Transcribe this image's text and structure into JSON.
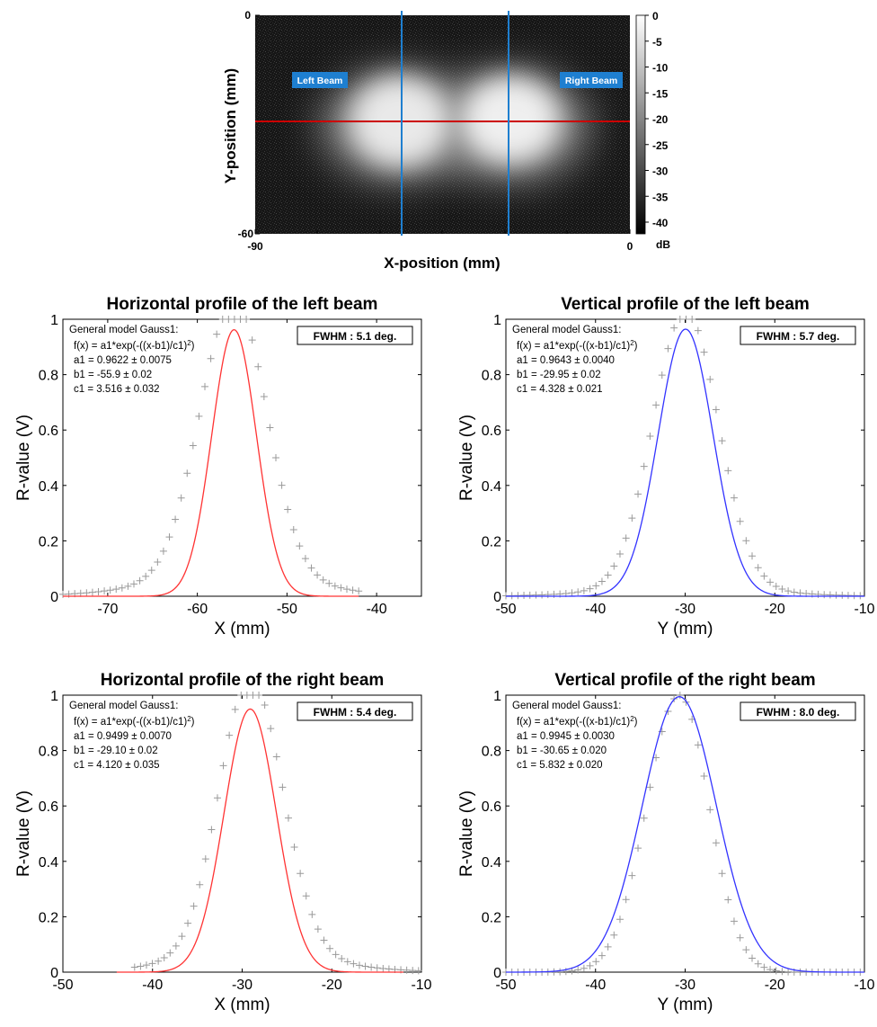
{
  "chart_data": [
    {
      "type": "heatmap",
      "xlabel": "X-position (mm)",
      "ylabel": "Y-position (mm)",
      "xlim": [
        -90,
        0
      ],
      "ylim": [
        -60,
        0
      ],
      "xticks": [
        "-90",
        "0"
      ],
      "yticks": [
        "0",
        "-60"
      ],
      "colorbar": {
        "unit": "dB",
        "range": [
          -40,
          0
        ],
        "ticks": [
          "0",
          "-5",
          "-10",
          "-15",
          "-20",
          "-25",
          "-30",
          "-35",
          "-40"
        ]
      },
      "annotations": [
        "Left Beam",
        "Right Beam"
      ],
      "cut_lines": {
        "horizontal_color": "#cc0000",
        "vertical_color": "#1e7fd0"
      },
      "beam_centers_mm": [
        [
          -55.9,
          -29.95
        ],
        [
          -29.1,
          -30.65
        ]
      ]
    },
    {
      "type": "line",
      "title": "Horizontal profile of the left beam",
      "xlabel": "X (mm)",
      "ylabel": "R-value (V)",
      "xlim": [
        -75,
        -35
      ],
      "ylim": [
        0,
        1
      ],
      "xticks": [
        "-70",
        "-60",
        "-50",
        "-40"
      ],
      "yticks": [
        "0",
        "0.2",
        "0.4",
        "0.6",
        "0.8",
        "1"
      ],
      "fit_color": "#ff3333",
      "fit": {
        "a1": 0.9622,
        "b1": -55.9,
        "c1": 3.516
      },
      "fit_range": [
        -75,
        -42
      ],
      "markers": {
        "range": [
          -75,
          -42
        ],
        "step": 0.66,
        "sigma_left": 4.8,
        "sigma_right": 4.6,
        "amplitude": 1.0,
        "shoulder": 0.07
      },
      "model_text": [
        "General model Gauss1:",
        "f(x) =  a1*exp(-((x-b1)/c1)",
        "a1 = 0.9622 ± 0.0075",
        "b1 = -55.9 ± 0.02",
        "c1 = 3.516 ± 0.032"
      ],
      "fwhm": "FWHM : 5.1 deg."
    },
    {
      "type": "line",
      "title": "Vertical profile of the left beam",
      "xlabel": "Y (mm)",
      "ylabel": "R-value (V)",
      "xlim": [
        -50,
        -10
      ],
      "ylim": [
        0,
        1
      ],
      "xticks": [
        "-50",
        "-40",
        "-30",
        "-20",
        "-10"
      ],
      "yticks": [
        "0",
        "0.2",
        "0.4",
        "0.6",
        "0.8",
        "1"
      ],
      "fit_color": "#3333ff",
      "fit": {
        "a1": 0.9643,
        "b1": -29.95,
        "c1": 4.328
      },
      "fit_range": [
        -50,
        -10
      ],
      "markers": {
        "range": [
          -50,
          -10
        ],
        "step": 0.67,
        "sigma_left": 4.6,
        "sigma_right": 4.6,
        "amplitude": 1.0,
        "shoulder": 0.03
      },
      "model_text": [
        "General model Gauss1:",
        "f(x) =  a1*exp(-((x-b1)/c1)",
        "a1 = 0.9643 ± 0.0040",
        "b1 = -29.95 ± 0.02",
        "c1 = 4.328 ± 0.021"
      ],
      "fwhm": "FWHM : 5.7 deg."
    },
    {
      "type": "line",
      "title": "Horizontal profile of the right beam",
      "xlabel": "X (mm)",
      "ylabel": "R-value (V)",
      "xlim": [
        -50,
        -10
      ],
      "ylim": [
        0,
        1
      ],
      "xticks": [
        "-50",
        "-40",
        "-30",
        "-20",
        "-10"
      ],
      "yticks": [
        "0",
        "0.2",
        "0.4",
        "0.6",
        "0.8",
        "1"
      ],
      "fit_color": "#ff3333",
      "fit": {
        "a1": 0.9499,
        "b1": -29.1,
        "c1": 4.12
      },
      "fit_range": [
        -44,
        -12
      ],
      "markers": {
        "range": [
          -42,
          -10
        ],
        "step": 0.66,
        "sigma_left": 4.4,
        "sigma_right": 4.6,
        "amplitude": 1.0,
        "shoulder": 0.06
      },
      "model_text": [
        "General model Gauss1:",
        "f(x) =  a1*exp(-((x-b1)/c1)",
        "a1 = 0.9499 ± 0.0070",
        "b1 = -29.10 ± 0.02",
        "c1 = 4.120 ± 0.035"
      ],
      "fwhm": "FWHM : 5.4 deg."
    },
    {
      "type": "line",
      "title": "Vertical profile of the right beam",
      "xlabel": "Y (mm)",
      "ylabel": "R-value (V)",
      "xlim": [
        -50,
        -10
      ],
      "ylim": [
        0,
        1
      ],
      "xticks": [
        "-50",
        "-40",
        "-30",
        "-20",
        "-10"
      ],
      "yticks": [
        "0",
        "0.2",
        "0.4",
        "0.6",
        "0.8",
        "1"
      ],
      "fit_color": "#3333ff",
      "fit": {
        "a1": 0.9945,
        "b1": -30.65,
        "c1": 5.832
      },
      "fit_range": [
        -50,
        -10
      ],
      "markers": {
        "range": [
          -50,
          -10
        ],
        "step": 0.67,
        "sigma_left": 4.6,
        "sigma_right": 4.2,
        "amplitude": 1.0,
        "shoulder": 0.0
      },
      "model_text": [
        "General model Gauss1:",
        "f(x) =  a1*exp(-((x-b1)/c1)",
        "a1 = 0.9945 ± 0.0030",
        "b1 = -30.65 ± 0.020",
        "c1 = 5.832 ± 0.020"
      ],
      "fwhm": "FWHM : 8.0 deg."
    }
  ]
}
